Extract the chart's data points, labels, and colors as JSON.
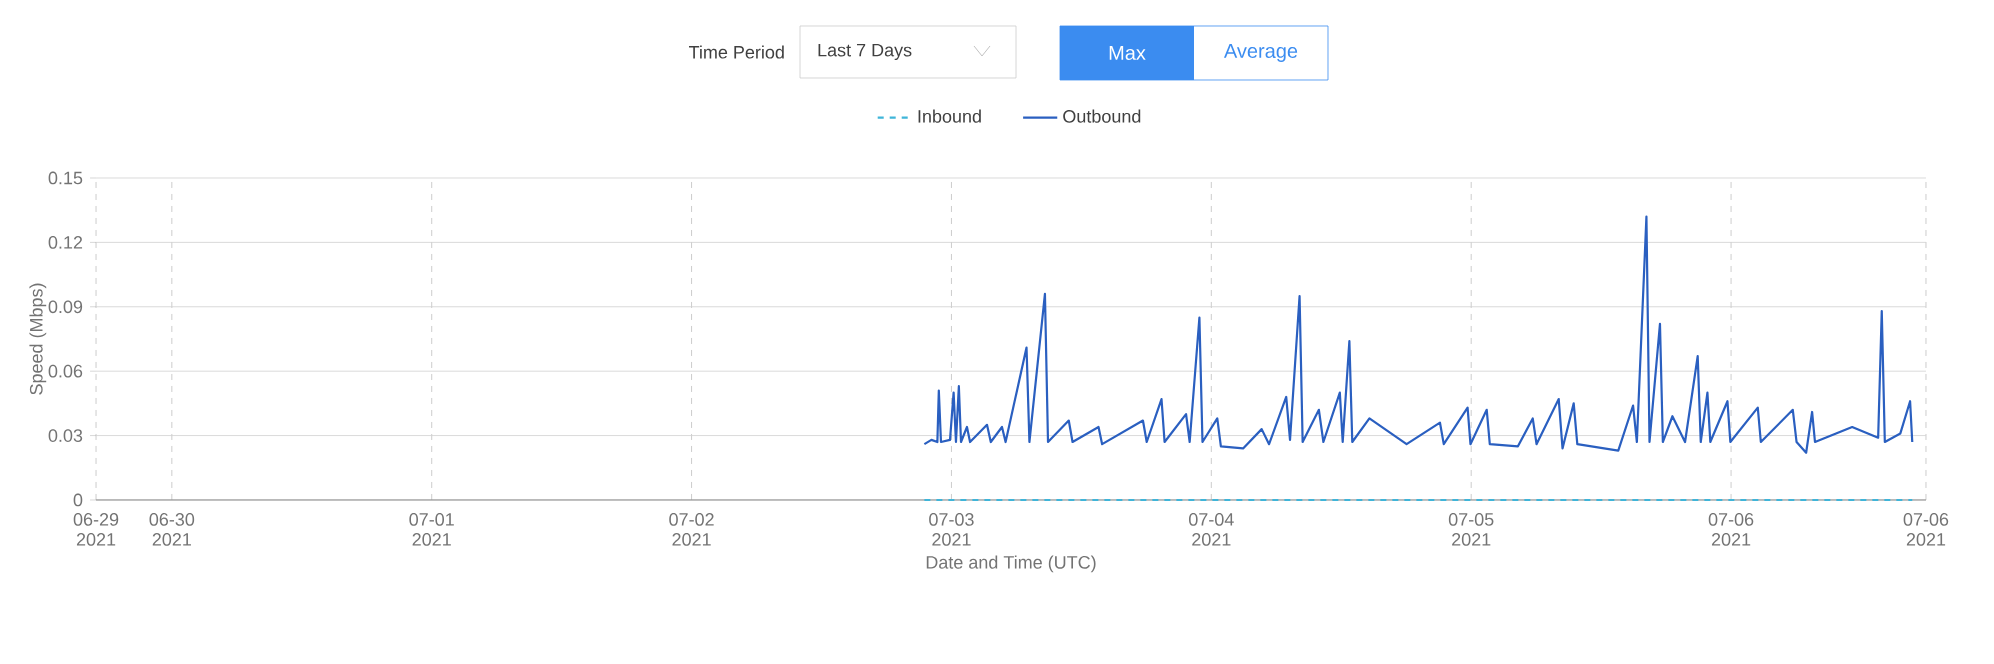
{
  "chart_data": {
    "type": "line",
    "xlabel": "Date and Time (UTC)",
    "ylabel": "Speed (Mbps)",
    "annotations": [
      "Time Period",
      "Last 7 Days",
      "Max",
      "Average"
    ],
    "xlim": [
      "2021-06-29T17:00",
      "2021-07-06T18:00"
    ],
    "xticks": [
      {
        "value": "2021-06-29T17:00",
        "label": "06-29 2021"
      },
      {
        "value": "2021-06-30T00:00",
        "label": "06-30 2021"
      },
      {
        "value": "2021-07-01T00:00",
        "label": "07-01 2021"
      },
      {
        "value": "2021-07-02T00:00",
        "label": "07-02 2021"
      },
      {
        "value": "2021-07-03T00:00",
        "label": "07-03 2021"
      },
      {
        "value": "2021-07-04T00:00",
        "label": "07-04 2021"
      },
      {
        "value": "2021-07-05T00:00",
        "label": "07-05 2021"
      },
      {
        "value": "2021-07-06T00:00",
        "label": "07-06 2021"
      },
      {
        "value": "2021-07-06T18:00",
        "label": "07-06 2021"
      }
    ],
    "ylim": [
      0,
      0.15
    ],
    "yticks": [
      0,
      0.03,
      0.06,
      0.09,
      0.12,
      0.15
    ],
    "grid": true,
    "legend": "top",
    "series": [
      {
        "name": "Inbound",
        "color": "#3fb5d9",
        "line_style": "dashed",
        "x": [
          "2021-07-02T21:30",
          "2021-07-06T16:44"
        ],
        "values": [
          0,
          0
        ]
      },
      {
        "name": "Outbound",
        "color": "#2a5fc0",
        "line_style": "solid",
        "x": [
          "2021-07-02T21:30",
          "2021-07-02T22:09",
          "2021-07-02T22:42",
          "2021-07-02T22:50",
          "2021-07-02T23:02",
          "2021-07-02T23:52",
          "2021-07-03T00:12",
          "2021-07-03T00:25",
          "2021-07-03T00:41",
          "2021-07-03T00:53",
          "2021-07-03T01:26",
          "2021-07-03T01:43",
          "2021-07-03T03:17",
          "2021-07-03T03:38",
          "2021-07-03T04:40",
          "2021-07-03T05:00",
          "2021-07-03T06:56",
          "2021-07-03T07:12",
          "2021-07-03T08:38",
          "2021-07-03T08:55",
          "2021-07-03T10:50",
          "2021-07-03T11:11",
          "2021-07-03T13:35",
          "2021-07-03T13:55",
          "2021-07-03T17:41",
          "2021-07-03T18:02",
          "2021-07-03T19:24",
          "2021-07-03T19:41",
          "2021-07-03T21:40",
          "2021-07-03T22:00",
          "2021-07-03T22:54",
          "2021-07-03T23:11",
          "2021-07-04T00:33",
          "2021-07-04T00:53",
          "2021-07-04T02:56",
          "2021-07-04T04:39",
          "2021-07-04T05:20",
          "2021-07-04T06:55",
          "2021-07-04T07:16",
          "2021-07-04T08:09",
          "2021-07-04T08:26",
          "2021-07-04T09:56",
          "2021-07-04T10:21",
          "2021-07-04T11:52",
          "2021-07-04T12:08",
          "2021-07-04T12:45",
          "2021-07-04T13:01",
          "2021-07-04T14:36",
          "2021-07-04T18:02",
          "2021-07-04T21:07",
          "2021-07-04T21:28",
          "2021-07-04T23:40",
          "2021-07-04T23:56",
          "2021-07-05T01:26",
          "2021-07-05T01:43",
          "2021-07-05T04:19",
          "2021-07-05T05:41",
          "2021-07-05T06:02",
          "2021-07-05T08:05",
          "2021-07-05T08:26",
          "2021-07-05T09:28",
          "2021-07-05T09:48",
          "2021-07-05T13:35",
          "2021-07-05T14:57",
          "2021-07-05T15:18",
          "2021-07-05T16:11",
          "2021-07-05T16:28",
          "2021-07-05T17:26",
          "2021-07-05T17:42",
          "2021-07-05T18:35",
          "2021-07-05T19:45",
          "2021-07-05T20:55",
          "2021-07-05T21:12",
          "2021-07-05T21:49",
          "2021-07-05T22:05",
          "2021-07-05T23:40",
          "2021-07-05T23:56",
          "2021-07-06T02:28",
          "2021-07-06T02:45",
          "2021-07-06T05:42",
          "2021-07-06T06:03",
          "2021-07-06T06:56",
          "2021-07-06T07:29",
          "2021-07-06T07:45",
          "2021-07-06T11:11",
          "2021-07-06T13:35",
          "2021-07-06T13:55",
          "2021-07-06T14:12",
          "2021-07-06T15:38",
          "2021-07-06T16:32",
          "2021-07-06T16:44"
        ],
        "values": [
          0.026,
          0.028,
          0.027,
          0.051,
          0.027,
          0.028,
          0.05,
          0.027,
          0.053,
          0.027,
          0.034,
          0.027,
          0.035,
          0.027,
          0.034,
          0.027,
          0.071,
          0.027,
          0.096,
          0.027,
          0.037,
          0.027,
          0.034,
          0.026,
          0.037,
          0.027,
          0.047,
          0.027,
          0.04,
          0.027,
          0.085,
          0.027,
          0.038,
          0.025,
          0.024,
          0.033,
          0.026,
          0.048,
          0.028,
          0.095,
          0.027,
          0.042,
          0.027,
          0.05,
          0.027,
          0.074,
          0.027,
          0.038,
          0.026,
          0.036,
          0.026,
          0.043,
          0.026,
          0.042,
          0.026,
          0.025,
          0.038,
          0.026,
          0.047,
          0.024,
          0.045,
          0.026,
          0.023,
          0.044,
          0.027,
          0.132,
          0.027,
          0.082,
          0.027,
          0.039,
          0.027,
          0.067,
          0.027,
          0.05,
          0.027,
          0.046,
          0.027,
          0.043,
          0.027,
          0.042,
          0.027,
          0.022,
          0.041,
          0.027,
          0.034,
          0.029,
          0.088,
          0.027,
          0.031,
          0.046,
          0.027
        ]
      }
    ]
  }
}
